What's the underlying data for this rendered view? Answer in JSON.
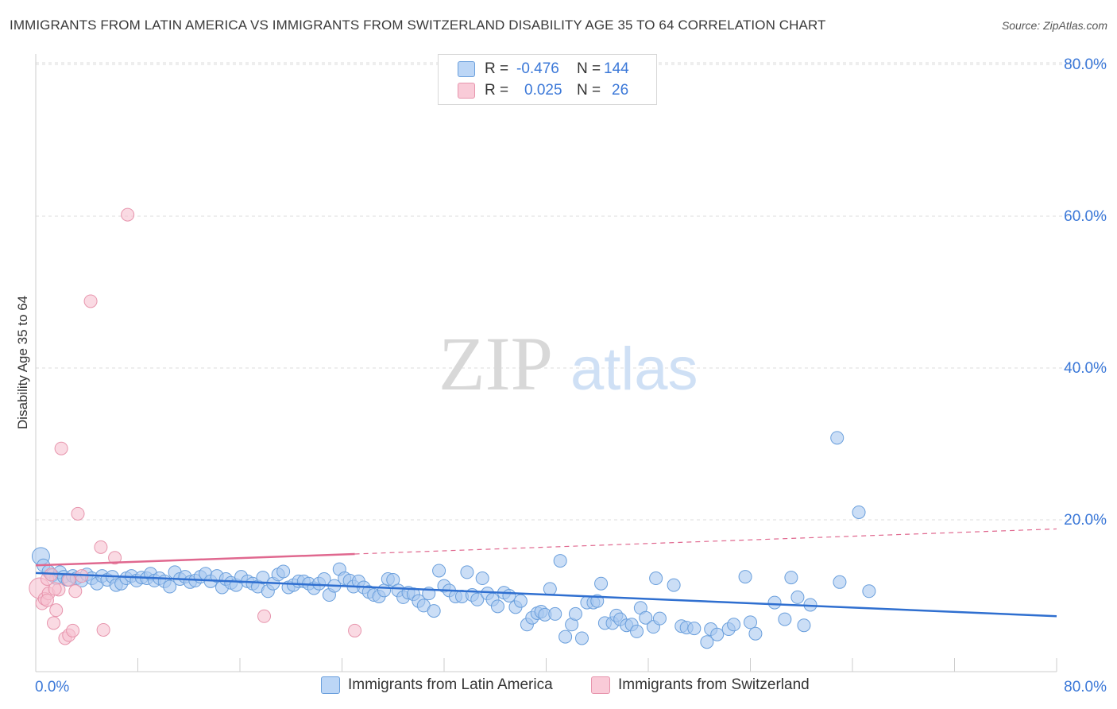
{
  "title": "IMMIGRANTS FROM LATIN AMERICA VS IMMIGRANTS FROM SWITZERLAND DISABILITY AGE 35 TO 64 CORRELATION CHART",
  "source": "Source: ZipAtlas.com",
  "watermark": {
    "zip": "ZIP",
    "atlas": "atlas"
  },
  "legend": {
    "rows": [
      {
        "r_label": "R =",
        "r_value": "-0.476",
        "n_label": "N =",
        "n_value": "144"
      },
      {
        "r_label": "R =",
        "r_value": "0.025",
        "n_label": "N =",
        "n_value": "26"
      }
    ]
  },
  "bottom_legend": [
    "Immigrants from Latin America",
    "Immigrants from Switzerland"
  ],
  "colors": {
    "blue_fill": "#a8c8f0",
    "blue_stroke": "#6a9fdc",
    "blue_line": "#2f6fd0",
    "pink_fill": "#f7c1d0",
    "pink_stroke": "#e795ad",
    "pink_line": "#e0688f",
    "axis_label": "#3b78d8",
    "grid": "#dddddd"
  },
  "chart_data": {
    "type": "scatter",
    "title": "IMMIGRANTS FROM LATIN AMERICA VS IMMIGRANTS FROM SWITZERLAND DISABILITY AGE 35 TO 64 CORRELATION CHART",
    "xlabel": "",
    "ylabel": "Disability Age 35 to 64",
    "xlim": [
      0,
      80
    ],
    "ylim": [
      0,
      80
    ],
    "x_tick_labels": [
      "0.0%",
      "80.0%"
    ],
    "y_tick_labels": [
      "20.0%",
      "40.0%",
      "60.0%",
      "80.0%"
    ],
    "y_ticks": [
      20,
      40,
      60,
      80
    ],
    "series": [
      {
        "name": "Immigrants from Latin America",
        "color": "blue",
        "trend": {
          "x0": 0,
          "y0": 13.0,
          "x1": 80,
          "y1": 7.3,
          "dashed_from": null
        },
        "points": [
          [
            0.4,
            15.2
          ],
          [
            0.6,
            14.0
          ],
          [
            1.0,
            13.2
          ],
          [
            1.3,
            12.7
          ],
          [
            1.6,
            12.3
          ],
          [
            1.9,
            13.1
          ],
          [
            2.2,
            12.5
          ],
          [
            2.5,
            12.1
          ],
          [
            2.9,
            12.6
          ],
          [
            3.2,
            12.3
          ],
          [
            3.6,
            12.0
          ],
          [
            4.0,
            12.8
          ],
          [
            4.4,
            12.3
          ],
          [
            4.8,
            11.6
          ],
          [
            5.2,
            12.6
          ],
          [
            5.6,
            12.1
          ],
          [
            6.0,
            12.5
          ],
          [
            6.3,
            11.4
          ],
          [
            6.7,
            11.6
          ],
          [
            7.1,
            12.3
          ],
          [
            7.5,
            12.6
          ],
          [
            7.9,
            12.0
          ],
          [
            8.3,
            12.4
          ],
          [
            8.7,
            12.3
          ],
          [
            9.0,
            12.9
          ],
          [
            9.3,
            12.0
          ],
          [
            9.7,
            12.3
          ],
          [
            10.1,
            11.9
          ],
          [
            10.5,
            11.2
          ],
          [
            10.9,
            13.1
          ],
          [
            11.3,
            12.2
          ],
          [
            11.7,
            12.5
          ],
          [
            12.1,
            11.8
          ],
          [
            12.5,
            12.0
          ],
          [
            12.9,
            12.5
          ],
          [
            13.3,
            12.9
          ],
          [
            13.7,
            11.9
          ],
          [
            14.2,
            12.6
          ],
          [
            14.6,
            11.1
          ],
          [
            14.9,
            12.2
          ],
          [
            15.3,
            11.7
          ],
          [
            15.7,
            11.4
          ],
          [
            16.1,
            12.5
          ],
          [
            16.6,
            11.9
          ],
          [
            17.0,
            11.6
          ],
          [
            17.4,
            11.2
          ],
          [
            17.8,
            12.4
          ],
          [
            18.2,
            10.6
          ],
          [
            18.6,
            11.6
          ],
          [
            19.0,
            12.8
          ],
          [
            19.4,
            13.2
          ],
          [
            19.8,
            11.1
          ],
          [
            20.2,
            11.4
          ],
          [
            20.6,
            11.9
          ],
          [
            21.0,
            11.9
          ],
          [
            21.4,
            11.6
          ],
          [
            21.8,
            11.0
          ],
          [
            22.2,
            11.6
          ],
          [
            22.6,
            12.2
          ],
          [
            23.0,
            10.1
          ],
          [
            23.4,
            11.3
          ],
          [
            23.8,
            13.5
          ],
          [
            24.2,
            12.3
          ],
          [
            24.6,
            12.0
          ],
          [
            24.9,
            11.2
          ],
          [
            25.3,
            11.9
          ],
          [
            25.7,
            11.1
          ],
          [
            26.1,
            10.5
          ],
          [
            26.5,
            10.1
          ],
          [
            26.9,
            9.9
          ],
          [
            27.3,
            10.7
          ],
          [
            27.6,
            12.2
          ],
          [
            28.0,
            12.1
          ],
          [
            28.4,
            10.7
          ],
          [
            28.8,
            9.8
          ],
          [
            29.2,
            10.4
          ],
          [
            29.6,
            10.2
          ],
          [
            30.0,
            9.3
          ],
          [
            30.4,
            8.7
          ],
          [
            30.8,
            10.3
          ],
          [
            31.2,
            8.0
          ],
          [
            31.6,
            13.3
          ],
          [
            32.0,
            11.3
          ],
          [
            32.4,
            10.7
          ],
          [
            32.9,
            9.9
          ],
          [
            33.4,
            9.9
          ],
          [
            33.8,
            13.1
          ],
          [
            34.2,
            10.1
          ],
          [
            34.6,
            9.5
          ],
          [
            35.0,
            12.3
          ],
          [
            35.4,
            10.3
          ],
          [
            35.8,
            9.5
          ],
          [
            36.2,
            8.6
          ],
          [
            36.7,
            10.4
          ],
          [
            37.1,
            10.0
          ],
          [
            37.6,
            8.5
          ],
          [
            38.0,
            9.3
          ],
          [
            38.5,
            6.2
          ],
          [
            38.9,
            7.1
          ],
          [
            39.3,
            7.7
          ],
          [
            39.6,
            7.9
          ],
          [
            39.9,
            7.5
          ],
          [
            40.3,
            10.9
          ],
          [
            40.7,
            7.6
          ],
          [
            41.1,
            14.6
          ],
          [
            41.5,
            4.6
          ],
          [
            42.0,
            6.2
          ],
          [
            42.3,
            7.6
          ],
          [
            42.8,
            4.4
          ],
          [
            43.2,
            9.1
          ],
          [
            43.7,
            9.1
          ],
          [
            44.0,
            9.3
          ],
          [
            44.3,
            11.6
          ],
          [
            44.6,
            6.4
          ],
          [
            45.2,
            6.4
          ],
          [
            45.5,
            7.4
          ],
          [
            45.8,
            6.9
          ],
          [
            46.3,
            6.1
          ],
          [
            46.7,
            6.2
          ],
          [
            47.1,
            5.3
          ],
          [
            47.4,
            8.4
          ],
          [
            47.8,
            7.1
          ],
          [
            48.4,
            5.9
          ],
          [
            48.6,
            12.3
          ],
          [
            48.9,
            7.0
          ],
          [
            50.0,
            11.4
          ],
          [
            50.6,
            6.0
          ],
          [
            51.0,
            5.8
          ],
          [
            51.6,
            5.7
          ],
          [
            52.6,
            3.9
          ],
          [
            52.9,
            5.6
          ],
          [
            53.4,
            4.9
          ],
          [
            54.3,
            5.6
          ],
          [
            54.7,
            6.2
          ],
          [
            55.6,
            12.5
          ],
          [
            56.0,
            6.5
          ],
          [
            56.4,
            5.0
          ],
          [
            57.9,
            9.1
          ],
          [
            58.7,
            6.9
          ],
          [
            59.2,
            12.4
          ],
          [
            59.7,
            9.8
          ],
          [
            60.2,
            6.1
          ],
          [
            60.7,
            8.8
          ],
          [
            63.0,
            11.8
          ],
          [
            65.3,
            10.6
          ],
          [
            62.8,
            30.8
          ],
          [
            64.5,
            21.0
          ]
        ]
      },
      {
        "name": "Immigrants from Switzerland",
        "color": "pink",
        "trend": {
          "x0": 0,
          "y0": 14.0,
          "x1": 80,
          "y1": 18.8,
          "dashed_from": 25
        },
        "points": [
          [
            0.3,
            11.0
          ],
          [
            0.5,
            9.0
          ],
          [
            0.7,
            9.6
          ],
          [
            0.9,
            12.2
          ],
          [
            1.0,
            10.3
          ],
          [
            1.2,
            12.8
          ],
          [
            1.4,
            6.4
          ],
          [
            1.6,
            8.1
          ],
          [
            1.8,
            10.8
          ],
          [
            2.0,
            29.4
          ],
          [
            2.3,
            4.4
          ],
          [
            2.6,
            4.8
          ],
          [
            2.9,
            5.4
          ],
          [
            3.1,
            10.6
          ],
          [
            3.3,
            20.8
          ],
          [
            3.6,
            12.6
          ],
          [
            4.3,
            48.8
          ],
          [
            5.1,
            16.4
          ],
          [
            5.3,
            5.5
          ],
          [
            6.2,
            15.0
          ],
          [
            7.2,
            60.2
          ],
          [
            17.9,
            7.3
          ],
          [
            25.0,
            5.4
          ],
          [
            0.9,
            9.4
          ],
          [
            1.5,
            10.9
          ],
          [
            2.6,
            12.1
          ]
        ]
      }
    ]
  }
}
